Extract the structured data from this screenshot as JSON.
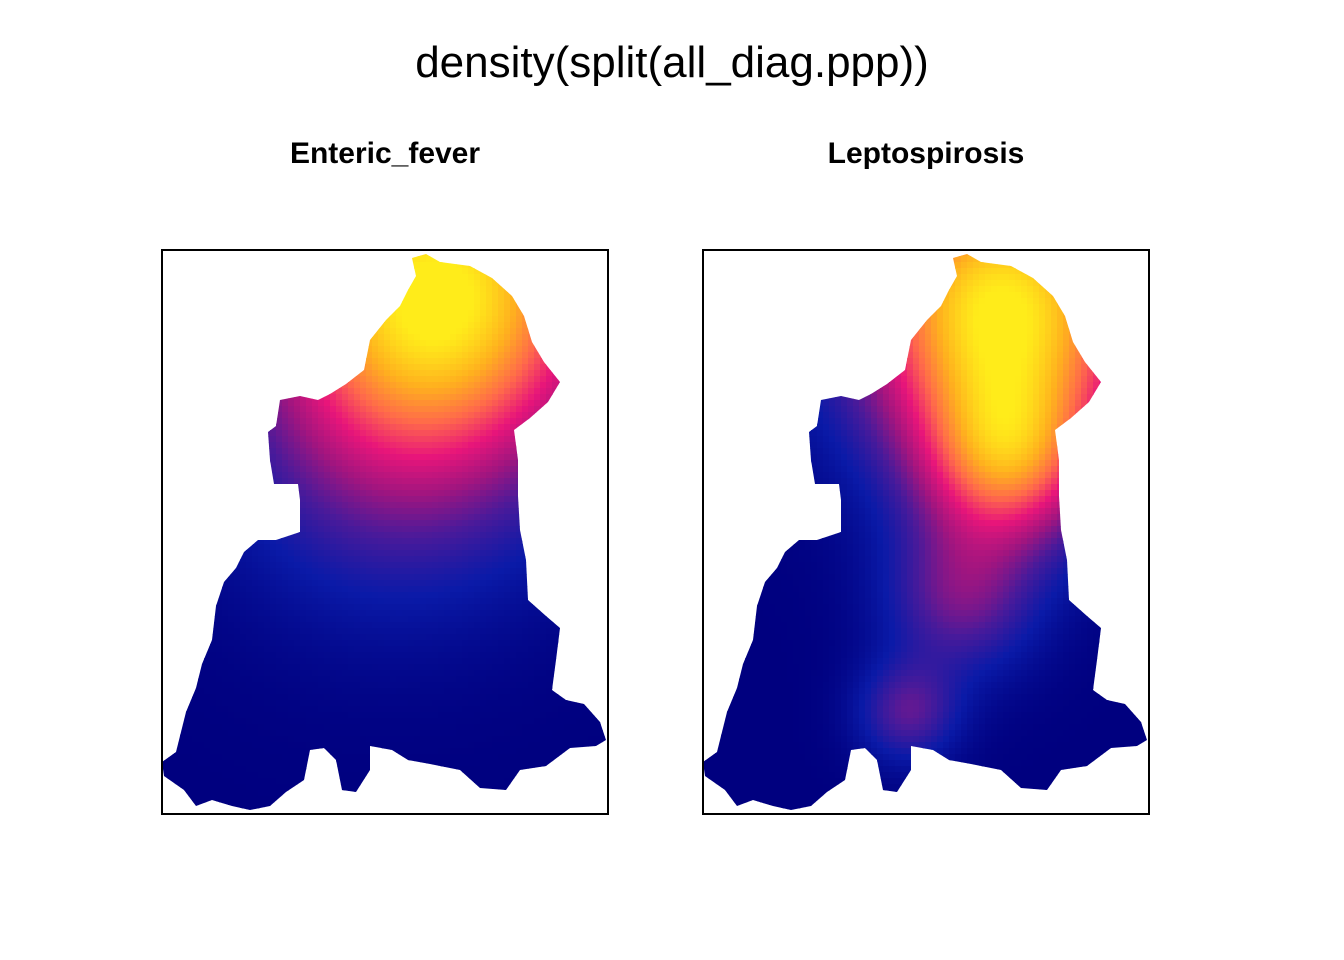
{
  "title": "density(split(all_diag.ppp))",
  "chart_data": [
    {
      "type": "heatmap",
      "title": "Enteric_fever",
      "colormap": [
        "#00007f",
        "#0a1aa8",
        "#4a1a9a",
        "#a2157f",
        "#e8157a",
        "#ff6a4a",
        "#ffb01e",
        "#ffec1a"
      ],
      "hotspots": [
        {
          "x": 0.62,
          "y": 0.07,
          "weight": 1.0,
          "spread": 0.28
        },
        {
          "x": 0.5,
          "y": 0.4,
          "weight": 0.18,
          "spread": 0.25
        }
      ],
      "grid": false,
      "legend": "none"
    },
    {
      "type": "heatmap",
      "title": "Leptospirosis",
      "colormap": [
        "#00007f",
        "#0a1aa8",
        "#4a1a9a",
        "#a2157f",
        "#e8157a",
        "#ff6a4a",
        "#ffb01e",
        "#ffec1a"
      ],
      "hotspots": [
        {
          "x": 0.67,
          "y": 0.1,
          "weight": 1.0,
          "spread": 0.24
        },
        {
          "x": 0.68,
          "y": 0.38,
          "weight": 0.55,
          "spread": 0.14
        },
        {
          "x": 0.58,
          "y": 0.62,
          "weight": 0.32,
          "spread": 0.12
        },
        {
          "x": 0.46,
          "y": 0.82,
          "weight": 0.3,
          "spread": 0.08
        }
      ],
      "grid": false,
      "legend": "none"
    }
  ]
}
